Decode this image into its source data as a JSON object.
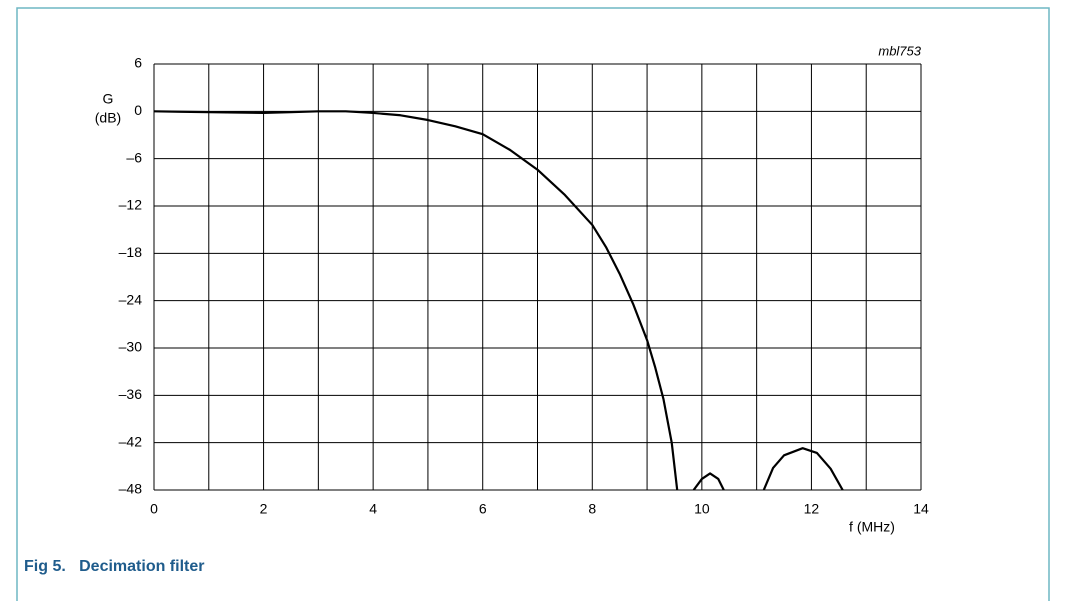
{
  "chart_data": {
    "type": "line",
    "ylabel_symbol": "G",
    "ylabel_unit": "(dB)",
    "xlabel": "f (MHz)",
    "annotation": "mbl753",
    "caption": "Fig 5.   Decimation filter",
    "xlim": [
      0,
      14
    ],
    "ylim": [
      -48,
      6
    ],
    "xticks": [
      0,
      2,
      4,
      6,
      8,
      10,
      12,
      14
    ],
    "x_minor_ticks": [
      1,
      3,
      5,
      7,
      9,
      11,
      13
    ],
    "yticks": [
      6,
      0,
      {
        "value": -6,
        "label": "–6"
      },
      {
        "value": -12,
        "label": "–12"
      },
      {
        "value": -18,
        "label": "–18"
      },
      {
        "value": -24,
        "label": "–24"
      },
      {
        "value": -30,
        "label": "–30"
      },
      {
        "value": -36,
        "label": "–36"
      },
      {
        "value": -42,
        "label": "–42"
      },
      {
        "value": -48,
        "label": "–48"
      }
    ],
    "grid": true,
    "series": [
      {
        "color": "#000000",
        "x": [
          0,
          0.5,
          1,
          1.5,
          2,
          2.5,
          3,
          3.5,
          4,
          4.5,
          5,
          5.5,
          6,
          6.5,
          7,
          7.5,
          8,
          8.25,
          8.5,
          8.75,
          9,
          9.15,
          9.3,
          9.45,
          9.55,
          9.7,
          9.85,
          10.0,
          10.15,
          10.3,
          10.4,
          10.8,
          11.13,
          11.3,
          11.5,
          11.84,
          12.1,
          12.35,
          12.57
        ],
        "values": [
          0,
          -0.05,
          -0.1,
          -0.15,
          -0.2,
          -0.1,
          0,
          0,
          -0.2,
          -0.5,
          -1.1,
          -1.9,
          -2.9,
          -4.9,
          -7.4,
          -10.6,
          -14.4,
          -17.2,
          -20.6,
          -24.5,
          -29,
          -32.5,
          -36.5,
          -42,
          -48,
          null,
          -48,
          -46.6,
          -45.9,
          -46.6,
          -48,
          null,
          -48,
          -45.2,
          -43.6,
          -42.7,
          -43.3,
          -45.3,
          -48
        ]
      }
    ]
  }
}
